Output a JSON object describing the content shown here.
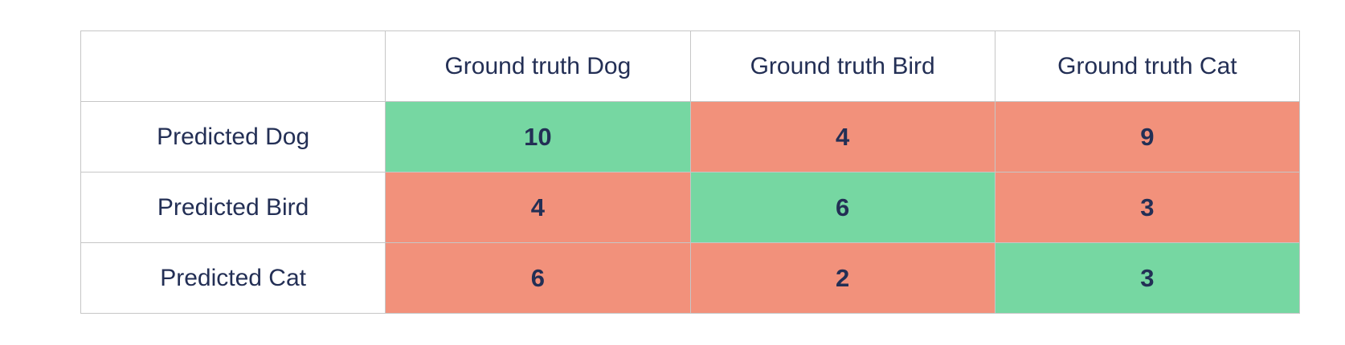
{
  "colors": {
    "page_bg": "#ffffff",
    "border": "#c6c6c6",
    "text": "#232f55",
    "correct_cell_bg": "#76d7a2",
    "incorrect_cell_bg": "#f2917b"
  },
  "table": {
    "corner_label": "",
    "column_headers": [
      "Ground truth Dog",
      "Ground truth Bird",
      "Ground truth Cat"
    ],
    "rows": [
      {
        "label": "Predicted Dog",
        "values": [
          "10",
          "4",
          "9"
        ],
        "correct_col": 0
      },
      {
        "label": "Predicted Bird",
        "values": [
          "4",
          "6",
          "3"
        ],
        "correct_col": 1
      },
      {
        "label": "Predicted Cat",
        "values": [
          "6",
          "2",
          "3"
        ],
        "correct_col": 2
      }
    ]
  },
  "chart_data": {
    "type": "table",
    "subtype": "confusion-matrix",
    "column_headers": [
      "Ground truth Dog",
      "Ground truth Bird",
      "Ground truth Cat"
    ],
    "row_headers": [
      "Predicted Dog",
      "Predicted Bird",
      "Predicted Cat"
    ],
    "values": [
      [
        10,
        4,
        9
      ],
      [
        4,
        6,
        3
      ],
      [
        6,
        2,
        3
      ]
    ],
    "highlight": {
      "green_cells": [
        [
          0,
          0
        ],
        [
          1,
          1
        ],
        [
          2,
          2
        ]
      ],
      "orange_cells": [
        [
          0,
          1
        ],
        [
          0,
          2
        ],
        [
          1,
          0
        ],
        [
          1,
          2
        ],
        [
          2,
          0
        ],
        [
          2,
          1
        ]
      ]
    },
    "legend_position": "none",
    "grid": true
  }
}
